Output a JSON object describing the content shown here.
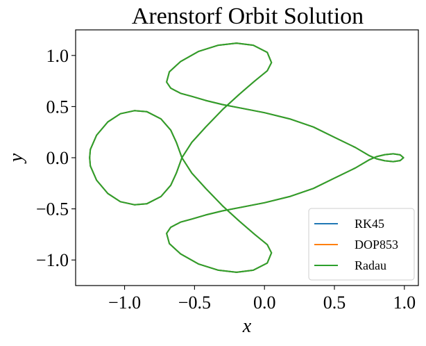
{
  "chart_data": {
    "type": "line",
    "title": "Arenstorf Orbit Solution",
    "xlabel": "x",
    "ylabel": "y",
    "xlim": [
      -1.35,
      1.1
    ],
    "ylim": [
      -1.25,
      1.25
    ],
    "x_ticks": [
      -1.0,
      -0.5,
      0.0,
      0.5,
      1.0
    ],
    "y_ticks": [
      -1.0,
      -0.5,
      0.0,
      0.5,
      1.0
    ],
    "x_tick_labels": [
      "−1.0",
      "−0.5",
      "0.0",
      "0.5",
      "1.0"
    ],
    "y_tick_labels": [
      "−1.0",
      "−0.5",
      "0.0",
      "0.5",
      "1.0"
    ],
    "grid": false,
    "legend_position": "lower-right",
    "series": [
      {
        "name": "RK45",
        "color": "#1f77b4"
      },
      {
        "name": "DOP853",
        "color": "#ff7f0e"
      },
      {
        "name": "Radau",
        "color": "#2ca02c"
      }
    ],
    "trajectory": [
      [
        0.994,
        0.0
      ],
      [
        0.97,
        0.028
      ],
      [
        0.92,
        0.038
      ],
      [
        0.86,
        0.03
      ],
      [
        0.8,
        0.01
      ],
      [
        0.75,
        -0.02
      ],
      [
        0.65,
        -0.1
      ],
      [
        0.5,
        -0.2
      ],
      [
        0.35,
        -0.3
      ],
      [
        0.18,
        -0.38
      ],
      [
        0.0,
        -0.44
      ],
      [
        -0.15,
        -0.48
      ],
      [
        -0.3,
        -0.52
      ],
      [
        -0.42,
        -0.56
      ],
      [
        -0.52,
        -0.6
      ],
      [
        -0.6,
        -0.63
      ],
      [
        -0.67,
        -0.68
      ],
      [
        -0.7,
        -0.74
      ],
      [
        -0.68,
        -0.84
      ],
      [
        -0.6,
        -0.94
      ],
      [
        -0.47,
        -1.04
      ],
      [
        -0.33,
        -1.1
      ],
      [
        -0.2,
        -1.12
      ],
      [
        -0.08,
        -1.1
      ],
      [
        0.02,
        -1.03
      ],
      [
        0.05,
        -0.93
      ],
      [
        0.02,
        -0.85
      ],
      [
        -0.07,
        -0.75
      ],
      [
        -0.18,
        -0.62
      ],
      [
        -0.3,
        -0.47
      ],
      [
        -0.42,
        -0.3
      ],
      [
        -0.52,
        -0.15
      ],
      [
        -0.59,
        0.0
      ],
      [
        -0.63,
        0.15
      ],
      [
        -0.67,
        0.27
      ],
      [
        -0.74,
        0.38
      ],
      [
        -0.84,
        0.45
      ],
      [
        -0.93,
        0.46
      ],
      [
        -1.03,
        0.43
      ],
      [
        -1.12,
        0.35
      ],
      [
        -1.2,
        0.22
      ],
      [
        -1.245,
        0.08
      ],
      [
        -1.25,
        0.0
      ],
      [
        -1.245,
        -0.08
      ],
      [
        -1.2,
        -0.22
      ],
      [
        -1.12,
        -0.35
      ],
      [
        -1.03,
        -0.43
      ],
      [
        -0.93,
        -0.46
      ],
      [
        -0.84,
        -0.45
      ],
      [
        -0.74,
        -0.38
      ],
      [
        -0.67,
        -0.27
      ],
      [
        -0.63,
        -0.15
      ],
      [
        -0.59,
        0.0
      ],
      [
        -0.52,
        0.15
      ],
      [
        -0.42,
        0.3
      ],
      [
        -0.3,
        0.47
      ],
      [
        -0.18,
        0.62
      ],
      [
        -0.07,
        0.75
      ],
      [
        0.02,
        0.85
      ],
      [
        0.05,
        0.93
      ],
      [
        0.02,
        1.03
      ],
      [
        -0.08,
        1.1
      ],
      [
        -0.2,
        1.12
      ],
      [
        -0.33,
        1.1
      ],
      [
        -0.47,
        1.04
      ],
      [
        -0.6,
        0.94
      ],
      [
        -0.68,
        0.84
      ],
      [
        -0.7,
        0.74
      ],
      [
        -0.67,
        0.68
      ],
      [
        -0.6,
        0.63
      ],
      [
        -0.52,
        0.6
      ],
      [
        -0.42,
        0.56
      ],
      [
        -0.3,
        0.52
      ],
      [
        -0.15,
        0.48
      ],
      [
        0.0,
        0.44
      ],
      [
        0.18,
        0.38
      ],
      [
        0.35,
        0.3
      ],
      [
        0.5,
        0.2
      ],
      [
        0.65,
        0.1
      ],
      [
        0.75,
        0.02
      ],
      [
        0.8,
        -0.01
      ],
      [
        0.86,
        -0.03
      ],
      [
        0.92,
        -0.038
      ],
      [
        0.97,
        -0.028
      ],
      [
        0.994,
        0.0
      ]
    ]
  }
}
